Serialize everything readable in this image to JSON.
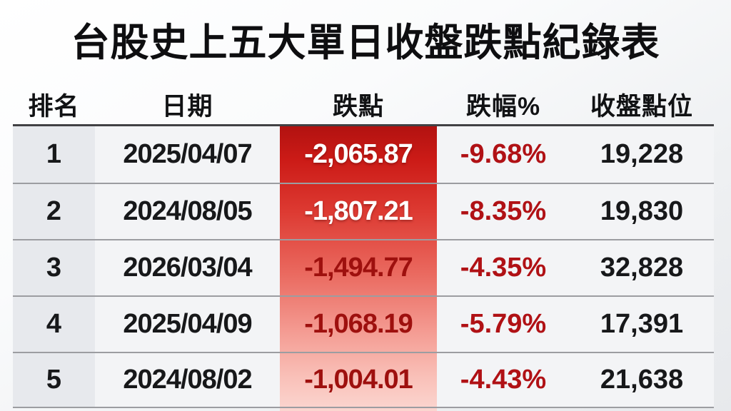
{
  "title": "台股史上五大單日收盤跌點紀錄表",
  "table": {
    "columns": [
      {
        "key": "rank",
        "label": "排名"
      },
      {
        "key": "date",
        "label": "日期"
      },
      {
        "key": "drop",
        "label": "跌點"
      },
      {
        "key": "pct",
        "label": "跌幅%"
      },
      {
        "key": "close",
        "label": "收盤點位"
      }
    ],
    "rows": [
      {
        "rank": "1",
        "date": "2025/04/07",
        "drop": "-2,065.87",
        "pct": "-9.68%",
        "close": "19,228"
      },
      {
        "rank": "2",
        "date": "2024/08/05",
        "drop": "-1,807.21",
        "pct": "-8.35%",
        "close": "19,830"
      },
      {
        "rank": "3",
        "date": "2026/03/04",
        "drop": "-1,494.77",
        "pct": "-4.35%",
        "close": "32,828"
      },
      {
        "rank": "4",
        "date": "2025/04/09",
        "drop": "-1,068.19",
        "pct": "-5.79%",
        "close": "17,391"
      },
      {
        "rank": "5",
        "date": "2024/08/02",
        "drop": "-1,004.01",
        "pct": "-4.43%",
        "close": "21,638"
      }
    ]
  },
  "colors": {
    "drop_column_gradient_top": "#b21210",
    "drop_column_gradient_bottom": "#fbd6d0",
    "drop_text_light": "#ffffff",
    "drop_text_dark": "#9e100e",
    "pct_text": "#b01115",
    "body_text": "#17181a",
    "rank_column_bg": "#e7e9ed",
    "cell_bg": "#f3f4f6",
    "header_separator": "#414144",
    "row_separator": "#9c9da1"
  },
  "chart_data": {
    "type": "table",
    "title": "台股史上五大單日收盤跌點紀錄表",
    "columns": [
      "排名",
      "日期",
      "跌點",
      "跌幅%",
      "收盤點位"
    ],
    "records": [
      {
        "排名": 1,
        "日期": "2025/04/07",
        "跌點": -2065.87,
        "跌幅%": -9.68,
        "收盤點位": 19228
      },
      {
        "排名": 2,
        "日期": "2024/08/05",
        "跌點": -1807.21,
        "跌幅%": -8.35,
        "收盤點位": 19830
      },
      {
        "排名": 3,
        "日期": "2026/03/04",
        "跌點": -1494.77,
        "跌幅%": -4.35,
        "收盤點位": 32828
      },
      {
        "排名": 4,
        "日期": "2025/04/09",
        "跌點": -1068.19,
        "跌幅%": -5.79,
        "收盤點位": 17391
      },
      {
        "排名": 5,
        "日期": "2024/08/02",
        "跌點": -1004.01,
        "跌幅%": -4.43,
        "收盤點位": 21638
      }
    ],
    "notes": "跌點 column highlighted with red vertical gradient, darkest at rank 1 fading to light pink at rank 5; ranks 1-2 drop values rendered in white text, ranks 3-5 in dark red text"
  }
}
